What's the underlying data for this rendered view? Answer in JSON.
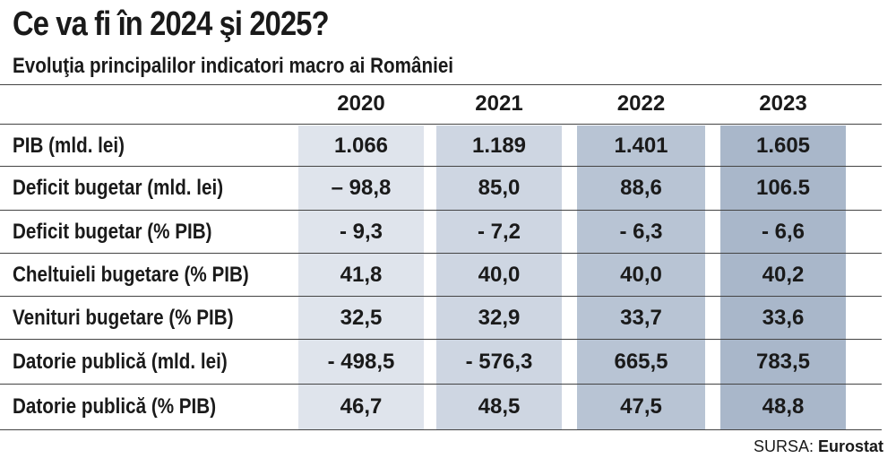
{
  "title": "Ce va fi în 2024 şi 2025?",
  "subtitle": "Evoluţia principalilor indicatori macro ai României",
  "years": [
    "2020",
    "2021",
    "2022",
    "2023"
  ],
  "rows": [
    {
      "label": "PIB (mld. lei)",
      "values": [
        "1.066",
        "1.189",
        "1.401",
        "1.605"
      ]
    },
    {
      "label": "Deficit bugetar (mld. lei)",
      "values": [
        "– 98,8",
        "85,0",
        "88,6",
        "106.5"
      ]
    },
    {
      "label": "Deficit bugetar (% PIB)",
      "values": [
        "- 9,3",
        "- 7,2",
        "- 6,3",
        "- 6,6"
      ]
    },
    {
      "label": "Cheltuieli bugetare (% PIB)",
      "values": [
        "41,8",
        "40,0",
        "40,0",
        "40,2"
      ]
    },
    {
      "label": "Venituri bugetare (% PIB)",
      "values": [
        "32,5",
        "32,9",
        "33,7",
        "33,6"
      ]
    },
    {
      "label": "Datorie publică (mld. lei)",
      "values": [
        "- 498,5",
        "- 576,3",
        "665,5",
        "783,5"
      ]
    },
    {
      "label": "Datorie publică (% PIB)",
      "values": [
        "46,7",
        "48,5",
        "47,5",
        "48,8"
      ]
    }
  ],
  "source": {
    "prefix": "SURSA:",
    "name": "Eurostat"
  },
  "colors": {
    "col_2020": "#dfe4ec",
    "col_2021": "#ced6e2",
    "col_2022": "#b8c4d4",
    "col_2023": "#a9b7ca"
  }
}
